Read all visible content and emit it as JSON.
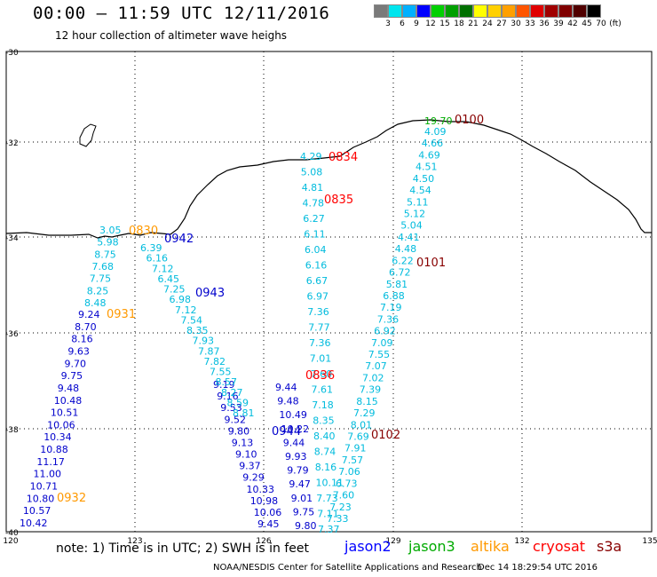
{
  "header": {
    "title": "00:00 – 11:59 UTC 12/11/2016",
    "subtitle": "12 hour collection of altimeter wave heighs"
  },
  "legend": {
    "labels": [
      "3",
      "6",
      "9",
      "12",
      "15",
      "18",
      "21",
      "24",
      "27",
      "30",
      "33",
      "36",
      "39",
      "42",
      "45",
      "70",
      "(ft)"
    ],
    "colors": [
      "#7a7a7a",
      "#00e5ee",
      "#00b0ff",
      "#0000ff",
      "#00d000",
      "#00a000",
      "#007000",
      "#ffff00",
      "#ffd000",
      "#ffa000",
      "#ff5500",
      "#e00000",
      "#a00000",
      "#800000",
      "#500000",
      "#000000"
    ]
  },
  "axes": {
    "lat_ticks": [
      "-30",
      "-32",
      "-34",
      "-36",
      "-38",
      "-40"
    ],
    "lon_ticks": [
      "120",
      "123",
      "126",
      "129",
      "132",
      "135"
    ]
  },
  "tracks": [
    {
      "sat": "jason2",
      "color": "#0000cc",
      "values": [
        "10.42",
        "10.57",
        "10.80",
        "10.71",
        "11.00",
        "11.17",
        "10.88",
        "10.34",
        "10.06",
        "10.51",
        "10.48",
        "9.48",
        "9.75",
        "9.70",
        "9.63",
        "8.16",
        "8.70",
        "9.24"
      ]
    },
    {
      "sat": "jason2",
      "color": "#0000cc",
      "values": [
        "9.19",
        "9.16",
        "9.53",
        "9.52",
        "9.80",
        "9.13",
        "9.10",
        "9.37",
        "9.29",
        "10.33",
        "10.98",
        "10.06",
        "9.45"
      ]
    },
    {
      "sat": "jason2",
      "color": "#0000cc",
      "values": [
        "9.44",
        "9.48",
        "10.49",
        "10.22",
        "9.44",
        "9.93",
        "9.79",
        "9.47",
        "9.01",
        "9.75",
        "9.80"
      ]
    },
    {
      "sat": "altimeter-lightblue",
      "color": "#00bbdd",
      "values": [
        "3.05",
        "5.98",
        "8.75",
        "7.68",
        "7.75",
        "8.25",
        "8.48"
      ]
    },
    {
      "sat": "altimeter-lightblue",
      "color": "#00bbdd",
      "values": [
        "6.39",
        "6.16",
        "7.12",
        "6.45",
        "7.25",
        "6.98",
        "7.12",
        "7.54",
        "8.35",
        "7.93",
        "7.87",
        "7.82",
        "7.55",
        "8.57",
        "8.27",
        "8.59",
        "8.81"
      ]
    },
    {
      "sat": "altimeter-lightblue",
      "color": "#00bbdd",
      "values": [
        "4.29",
        "5.08",
        "4.81",
        "4.78",
        "6.27",
        "6.11",
        "6.04",
        "6.16",
        "6.67",
        "6.97",
        "7.36",
        "7.77",
        "7.36",
        "7.01",
        "7.60",
        "7.61",
        "7.18",
        "8.35",
        "8.40",
        "8.74",
        "8.16",
        "10.11",
        "7.73",
        "7.11",
        "7.37"
      ]
    },
    {
      "sat": "altimeter-lightblue",
      "color": "#00bbdd",
      "values": [
        "4.09",
        "4.66",
        "4.69",
        "4.51",
        "4.50",
        "4.54",
        "5.11",
        "5.12",
        "5.04",
        "4.41",
        "4.48",
        "6.22",
        "6.72",
        "5.81",
        "6.88",
        "7.19",
        "7.36",
        "6.92",
        "7.09",
        "7.55",
        "7.07",
        "7.02",
        "7.39",
        "8.15",
        "7.29",
        "8.01",
        "7.69",
        "7.91",
        "7.57",
        "7.06",
        "6.73",
        "7.60",
        "7.23",
        "7.33"
      ]
    },
    {
      "sat": "jason3",
      "color": "#00aa00",
      "values": [
        "19.70"
      ]
    }
  ],
  "time_labels": [
    {
      "text": "0830",
      "color": "#ff9900"
    },
    {
      "text": "0931",
      "color": "#ff9900"
    },
    {
      "text": "0932",
      "color": "#ff9900"
    },
    {
      "text": "0942",
      "color": "#0000cc"
    },
    {
      "text": "0943",
      "color": "#0000cc"
    },
    {
      "text": "0944",
      "color": "#0000cc"
    },
    {
      "text": "0834",
      "color": "#ff0000"
    },
    {
      "text": "0835",
      "color": "#ff0000"
    },
    {
      "text": "0836",
      "color": "#ff0000"
    },
    {
      "text": "0100",
      "color": "#880000"
    },
    {
      "text": "0101",
      "color": "#880000"
    },
    {
      "text": "0102",
      "color": "#880000"
    }
  ],
  "footer": {
    "note": "note: 1) Time is in UTC; 2) SWH is in feet",
    "satellites": [
      {
        "name": "jason2",
        "color": "#0000ff"
      },
      {
        "name": "jason3",
        "color": "#00aa00"
      },
      {
        "name": "altika",
        "color": "#ff9900"
      },
      {
        "name": "cryosat",
        "color": "#ff0000"
      },
      {
        "name": "s3a",
        "color": "#880000"
      }
    ],
    "credit": "NOAA/NESDIS Center for Satellite Applications and Research",
    "timestamp": "Dec 14 18:29:54 UTC 2016"
  }
}
